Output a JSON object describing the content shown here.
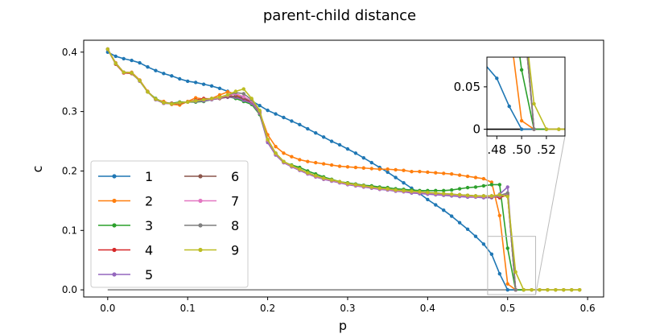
{
  "chart_data": {
    "type": "line",
    "title": "parent-child distance",
    "xlabel": "p",
    "ylabel": "c",
    "xlim": [
      -0.03,
      0.62
    ],
    "ylim": [
      -0.012,
      0.42
    ],
    "xticks": [
      0.0,
      0.1,
      0.2,
      0.3,
      0.4,
      0.5,
      0.6
    ],
    "xtick_labels": [
      "0.0",
      "0.1",
      "0.2",
      "0.3",
      "0.4",
      "0.5",
      "0.6"
    ],
    "yticks": [
      0.0,
      0.1,
      0.2,
      0.3,
      0.4
    ],
    "ytick_labels": [
      "0.0",
      "0.1",
      "0.2",
      "0.3",
      "0.4"
    ],
    "legend_position": "lower-left",
    "reference_line": {
      "y": 0.0,
      "x_range": [
        0.0,
        0.55
      ],
      "color": "#999999"
    },
    "series": [
      {
        "name": "1",
        "color": "#1f77b4",
        "x": [
          0.0,
          0.01,
          0.02,
          0.03,
          0.04,
          0.05,
          0.06,
          0.07,
          0.08,
          0.09,
          0.1,
          0.11,
          0.12,
          0.13,
          0.14,
          0.15,
          0.16,
          0.17,
          0.18,
          0.19,
          0.2,
          0.21,
          0.22,
          0.23,
          0.24,
          0.25,
          0.26,
          0.27,
          0.28,
          0.29,
          0.3,
          0.31,
          0.32,
          0.33,
          0.34,
          0.35,
          0.36,
          0.37,
          0.38,
          0.39,
          0.4,
          0.41,
          0.42,
          0.43,
          0.44,
          0.45,
          0.46,
          0.47,
          0.48,
          0.49,
          0.5,
          0.51,
          0.52,
          0.53,
          0.54,
          0.55,
          0.56,
          0.57,
          0.58,
          0.59
        ],
        "y": [
          0.4,
          0.393,
          0.389,
          0.386,
          0.382,
          0.375,
          0.369,
          0.364,
          0.36,
          0.355,
          0.351,
          0.349,
          0.346,
          0.343,
          0.339,
          0.334,
          0.328,
          0.323,
          0.318,
          0.31,
          0.302,
          0.296,
          0.29,
          0.284,
          0.278,
          0.271,
          0.264,
          0.257,
          0.25,
          0.244,
          0.237,
          0.23,
          0.222,
          0.214,
          0.206,
          0.198,
          0.189,
          0.18,
          0.171,
          0.162,
          0.152,
          0.143,
          0.134,
          0.124,
          0.113,
          0.102,
          0.09,
          0.077,
          0.06,
          0.027,
          0.0,
          0.0,
          0.0,
          0.0,
          0.0,
          0.0,
          0.0,
          0.0,
          0.0,
          0.0
        ]
      },
      {
        "name": "2",
        "color": "#ff7f0e",
        "x": [
          0.0,
          0.01,
          0.02,
          0.03,
          0.04,
          0.05,
          0.06,
          0.07,
          0.08,
          0.09,
          0.1,
          0.11,
          0.12,
          0.13,
          0.14,
          0.15,
          0.16,
          0.17,
          0.18,
          0.19,
          0.2,
          0.21,
          0.22,
          0.23,
          0.24,
          0.25,
          0.26,
          0.27,
          0.28,
          0.29,
          0.3,
          0.31,
          0.32,
          0.33,
          0.34,
          0.35,
          0.36,
          0.37,
          0.38,
          0.39,
          0.4,
          0.41,
          0.42,
          0.43,
          0.44,
          0.45,
          0.46,
          0.47,
          0.48,
          0.49,
          0.5,
          0.51,
          0.52,
          0.53,
          0.54,
          0.55,
          0.56,
          0.57,
          0.58,
          0.59
        ],
        "y": [
          0.405,
          0.382,
          0.366,
          0.366,
          0.353,
          0.334,
          0.32,
          0.317,
          0.312,
          0.311,
          0.317,
          0.323,
          0.321,
          0.322,
          0.328,
          0.333,
          0.33,
          0.32,
          0.316,
          0.299,
          0.261,
          0.241,
          0.23,
          0.224,
          0.219,
          0.216,
          0.214,
          0.212,
          0.21,
          0.208,
          0.207,
          0.206,
          0.205,
          0.204,
          0.203,
          0.203,
          0.202,
          0.201,
          0.199,
          0.199,
          0.198,
          0.197,
          0.196,
          0.195,
          0.193,
          0.191,
          0.189,
          0.187,
          0.181,
          0.125,
          0.01,
          0.0,
          0.0,
          0.0,
          0.0,
          0.0,
          0.0,
          0.0,
          0.0,
          0.0
        ]
      },
      {
        "name": "3",
        "color": "#2ca02c",
        "x": [
          0.0,
          0.01,
          0.02,
          0.03,
          0.04,
          0.05,
          0.06,
          0.07,
          0.08,
          0.09,
          0.1,
          0.11,
          0.12,
          0.13,
          0.14,
          0.15,
          0.16,
          0.17,
          0.18,
          0.19,
          0.2,
          0.21,
          0.22,
          0.23,
          0.24,
          0.25,
          0.26,
          0.27,
          0.28,
          0.29,
          0.3,
          0.31,
          0.32,
          0.33,
          0.34,
          0.35,
          0.36,
          0.37,
          0.38,
          0.39,
          0.4,
          0.41,
          0.42,
          0.43,
          0.44,
          0.45,
          0.46,
          0.47,
          0.48,
          0.49,
          0.5,
          0.51,
          0.52
        ],
        "y": [
          0.405,
          0.38,
          0.366,
          0.364,
          0.352,
          0.333,
          0.322,
          0.315,
          0.314,
          0.316,
          0.316,
          0.316,
          0.317,
          0.32,
          0.323,
          0.325,
          0.322,
          0.317,
          0.312,
          0.295,
          0.25,
          0.23,
          0.215,
          0.21,
          0.206,
          0.2,
          0.195,
          0.19,
          0.186,
          0.182,
          0.18,
          0.178,
          0.176,
          0.175,
          0.173,
          0.172,
          0.17,
          0.169,
          0.168,
          0.167,
          0.167,
          0.167,
          0.167,
          0.168,
          0.17,
          0.172,
          0.173,
          0.175,
          0.177,
          0.177,
          0.07,
          0.0,
          0.0
        ]
      },
      {
        "name": "4",
        "color": "#d62728",
        "x": [
          0.0,
          0.01,
          0.02,
          0.03,
          0.04,
          0.05,
          0.06,
          0.07,
          0.08,
          0.09,
          0.1,
          0.11,
          0.12,
          0.13,
          0.14,
          0.15,
          0.16,
          0.17,
          0.18,
          0.19,
          0.2,
          0.21,
          0.22,
          0.23,
          0.24,
          0.25,
          0.26,
          0.27,
          0.28,
          0.29,
          0.3,
          0.31,
          0.32,
          0.33,
          0.34,
          0.35,
          0.36,
          0.37,
          0.38,
          0.39,
          0.4,
          0.41,
          0.42,
          0.43,
          0.44,
          0.45,
          0.46,
          0.47,
          0.48,
          0.49,
          0.5,
          0.51
        ],
        "y": [
          0.405,
          0.38,
          0.365,
          0.364,
          0.352,
          0.333,
          0.321,
          0.314,
          0.314,
          0.314,
          0.316,
          0.319,
          0.322,
          0.321,
          0.322,
          0.327,
          0.325,
          0.32,
          0.315,
          0.298,
          0.25,
          0.228,
          0.215,
          0.208,
          0.202,
          0.196,
          0.191,
          0.187,
          0.184,
          0.181,
          0.179,
          0.177,
          0.175,
          0.173,
          0.171,
          0.169,
          0.168,
          0.166,
          0.165,
          0.164,
          0.163,
          0.162,
          0.161,
          0.16,
          0.16,
          0.159,
          0.158,
          0.158,
          0.158,
          0.155,
          0.16,
          0.0
        ]
      },
      {
        "name": "5",
        "color": "#9467bd",
        "x": [
          0.0,
          0.01,
          0.02,
          0.03,
          0.04,
          0.05,
          0.06,
          0.07,
          0.08,
          0.09,
          0.1,
          0.11,
          0.12,
          0.13,
          0.14,
          0.15,
          0.16,
          0.17,
          0.18,
          0.19,
          0.2,
          0.21,
          0.22,
          0.23,
          0.24,
          0.25,
          0.26,
          0.27,
          0.28,
          0.29,
          0.3,
          0.31,
          0.32,
          0.33,
          0.34,
          0.35,
          0.36,
          0.37,
          0.38,
          0.39,
          0.4,
          0.41,
          0.42,
          0.43,
          0.44,
          0.45,
          0.46,
          0.47,
          0.48,
          0.49,
          0.5,
          0.51
        ],
        "y": [
          0.405,
          0.381,
          0.366,
          0.365,
          0.351,
          0.333,
          0.32,
          0.314,
          0.313,
          0.315,
          0.316,
          0.317,
          0.318,
          0.32,
          0.322,
          0.324,
          0.324,
          0.319,
          0.314,
          0.297,
          0.248,
          0.227,
          0.214,
          0.207,
          0.201,
          0.195,
          0.19,
          0.186,
          0.183,
          0.18,
          0.177,
          0.175,
          0.173,
          0.171,
          0.169,
          0.168,
          0.166,
          0.165,
          0.163,
          0.162,
          0.161,
          0.16,
          0.159,
          0.158,
          0.157,
          0.156,
          0.156,
          0.155,
          0.155,
          0.161,
          0.173,
          0.0
        ]
      },
      {
        "name": "6",
        "color": "#8c564b",
        "x": [
          0.0,
          0.01,
          0.02,
          0.03,
          0.04,
          0.05,
          0.06,
          0.07,
          0.08,
          0.09,
          0.1,
          0.11,
          0.12,
          0.13,
          0.14,
          0.15,
          0.16,
          0.17,
          0.18,
          0.19,
          0.2,
          0.21,
          0.22,
          0.23,
          0.24,
          0.25,
          0.26,
          0.27,
          0.28,
          0.29,
          0.3,
          0.31,
          0.32,
          0.33,
          0.34,
          0.35,
          0.36,
          0.37,
          0.38,
          0.39,
          0.4,
          0.41,
          0.42,
          0.43,
          0.44,
          0.45,
          0.46,
          0.47,
          0.48,
          0.49,
          0.5,
          0.51
        ],
        "y": [
          0.405,
          0.381,
          0.366,
          0.365,
          0.352,
          0.333,
          0.321,
          0.315,
          0.313,
          0.314,
          0.316,
          0.318,
          0.32,
          0.321,
          0.322,
          0.325,
          0.326,
          0.322,
          0.317,
          0.299,
          0.252,
          0.229,
          0.215,
          0.208,
          0.202,
          0.196,
          0.191,
          0.187,
          0.184,
          0.181,
          0.178,
          0.176,
          0.174,
          0.172,
          0.17,
          0.169,
          0.167,
          0.166,
          0.165,
          0.164,
          0.163,
          0.162,
          0.161,
          0.16,
          0.159,
          0.158,
          0.157,
          0.157,
          0.156,
          0.157,
          0.16,
          0.0
        ]
      },
      {
        "name": "7",
        "color": "#e377c2",
        "x": [
          0.0,
          0.01,
          0.02,
          0.03,
          0.04,
          0.05,
          0.06,
          0.07,
          0.08,
          0.09,
          0.1,
          0.11,
          0.12,
          0.13,
          0.14,
          0.15,
          0.16,
          0.17,
          0.18,
          0.19,
          0.2,
          0.21,
          0.22,
          0.23,
          0.24,
          0.25,
          0.26,
          0.27,
          0.28,
          0.29,
          0.3,
          0.31,
          0.32,
          0.33,
          0.34,
          0.35,
          0.36,
          0.37,
          0.38,
          0.39,
          0.4,
          0.41,
          0.42,
          0.43,
          0.44,
          0.45,
          0.46,
          0.47,
          0.48,
          0.49,
          0.5,
          0.51
        ],
        "y": [
          0.405,
          0.381,
          0.366,
          0.365,
          0.352,
          0.333,
          0.321,
          0.315,
          0.313,
          0.315,
          0.316,
          0.318,
          0.32,
          0.321,
          0.323,
          0.327,
          0.33,
          0.325,
          0.318,
          0.3,
          0.252,
          0.229,
          0.215,
          0.208,
          0.202,
          0.196,
          0.191,
          0.187,
          0.184,
          0.181,
          0.178,
          0.176,
          0.174,
          0.172,
          0.17,
          0.169,
          0.167,
          0.166,
          0.165,
          0.164,
          0.163,
          0.162,
          0.161,
          0.16,
          0.159,
          0.158,
          0.157,
          0.157,
          0.157,
          0.158,
          0.162,
          0.0
        ]
      },
      {
        "name": "8",
        "color": "#7f7f7f",
        "x": [
          0.0,
          0.01,
          0.02,
          0.03,
          0.04,
          0.05,
          0.06,
          0.07,
          0.08,
          0.09,
          0.1,
          0.11,
          0.12,
          0.13,
          0.14,
          0.15,
          0.16,
          0.17,
          0.18,
          0.19,
          0.2,
          0.21,
          0.22,
          0.23,
          0.24,
          0.25,
          0.26,
          0.27,
          0.28,
          0.29,
          0.3,
          0.31,
          0.32,
          0.33,
          0.34,
          0.35,
          0.36,
          0.37,
          0.38,
          0.39,
          0.4,
          0.41,
          0.42,
          0.43,
          0.44,
          0.45,
          0.46,
          0.47,
          0.48,
          0.49,
          0.5,
          0.51
        ],
        "y": [
          0.405,
          0.381,
          0.366,
          0.365,
          0.352,
          0.333,
          0.321,
          0.315,
          0.313,
          0.315,
          0.316,
          0.318,
          0.32,
          0.322,
          0.324,
          0.328,
          0.332,
          0.33,
          0.32,
          0.301,
          0.253,
          0.23,
          0.216,
          0.209,
          0.203,
          0.197,
          0.192,
          0.188,
          0.185,
          0.182,
          0.179,
          0.177,
          0.175,
          0.173,
          0.171,
          0.17,
          0.168,
          0.167,
          0.166,
          0.165,
          0.164,
          0.163,
          0.162,
          0.161,
          0.16,
          0.159,
          0.158,
          0.158,
          0.158,
          0.159,
          0.163,
          0.0
        ]
      },
      {
        "name": "9",
        "color": "#bcbd22",
        "x": [
          0.0,
          0.01,
          0.02,
          0.03,
          0.04,
          0.05,
          0.06,
          0.07,
          0.08,
          0.09,
          0.1,
          0.11,
          0.12,
          0.13,
          0.14,
          0.15,
          0.16,
          0.17,
          0.18,
          0.19,
          0.2,
          0.21,
          0.22,
          0.23,
          0.24,
          0.25,
          0.26,
          0.27,
          0.28,
          0.29,
          0.3,
          0.31,
          0.32,
          0.33,
          0.34,
          0.35,
          0.36,
          0.37,
          0.38,
          0.39,
          0.4,
          0.41,
          0.42,
          0.43,
          0.44,
          0.45,
          0.46,
          0.47,
          0.48,
          0.49,
          0.5,
          0.51,
          0.52,
          0.53,
          0.54,
          0.55,
          0.56,
          0.57,
          0.58,
          0.59
        ],
        "y": [
          0.405,
          0.381,
          0.366,
          0.365,
          0.352,
          0.333,
          0.321,
          0.315,
          0.313,
          0.315,
          0.316,
          0.318,
          0.32,
          0.322,
          0.324,
          0.328,
          0.334,
          0.338,
          0.322,
          0.302,
          0.253,
          0.23,
          0.216,
          0.209,
          0.203,
          0.197,
          0.192,
          0.188,
          0.185,
          0.182,
          0.179,
          0.177,
          0.175,
          0.173,
          0.171,
          0.17,
          0.168,
          0.167,
          0.166,
          0.165,
          0.164,
          0.163,
          0.162,
          0.161,
          0.16,
          0.159,
          0.158,
          0.158,
          0.158,
          0.16,
          0.157,
          0.03,
          0.0,
          0.0,
          0.0,
          0.0,
          0.0,
          0.0,
          0.0,
          0.0
        ]
      }
    ],
    "inset": {
      "xlim": [
        0.472,
        0.535
      ],
      "ylim": [
        -0.008,
        0.085
      ],
      "xticks": [
        0.48,
        0.5,
        0.52
      ],
      "xtick_labels": [
        ".48",
        ".50",
        ".52"
      ],
      "yticks": [
        0.0,
        0.05
      ],
      "ytick_labels": [
        "0",
        "0.05"
      ],
      "zoom_region": {
        "x": [
          0.475,
          0.535
        ],
        "y": [
          -0.008,
          0.09
        ]
      }
    }
  }
}
